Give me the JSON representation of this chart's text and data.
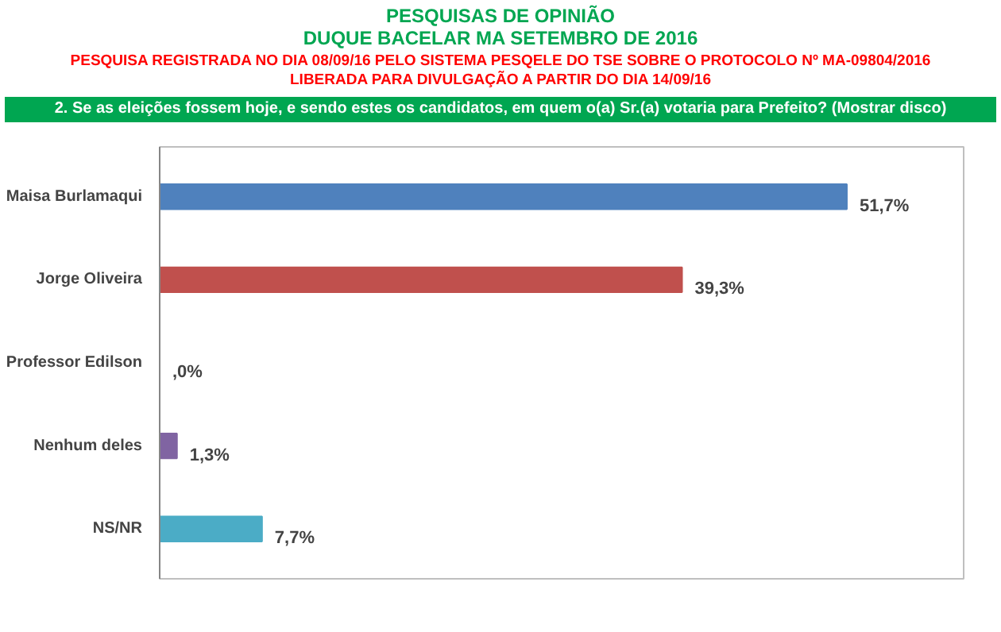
{
  "chart_data": {
    "type": "bar",
    "orientation": "horizontal",
    "title": "PESQUISAS DE OPINIÃO\nDUQUE BACELAR MA SETEMBRO DE 2016",
    "subtitle": "PESQUISA REGISTRADA NO DIA 08/09/16 PELO SISTEMA PESQELE DO TSE SOBRE O PROTOCOLO Nº MA-09804/2016\nLIBERADA PARA DIVULGAÇÃO A PARTIR DO DIA 14/09/16",
    "annotations": [
      "2. Se as eleições fossem hoje, e sendo estes os candidatos, em quem o(a) Sr.(a) votaria para Prefeito? (Mostrar disco)"
    ],
    "categories": [
      "Maisa Burlamaqui",
      "Jorge Oliveira",
      "Professor Edilson",
      "Nenhum deles",
      "NS/NR"
    ],
    "values": [
      51.7,
      39.3,
      0,
      1.3,
      7.7
    ],
    "colors": [
      "#4f81bd",
      "#c0504d",
      "#4f6228",
      "#8064a2",
      "#4bacc6"
    ],
    "value_labels": [
      "51,7%",
      "39,3%",
      ",0%",
      "1,3%",
      "7,7%"
    ],
    "grid": false
  }
}
